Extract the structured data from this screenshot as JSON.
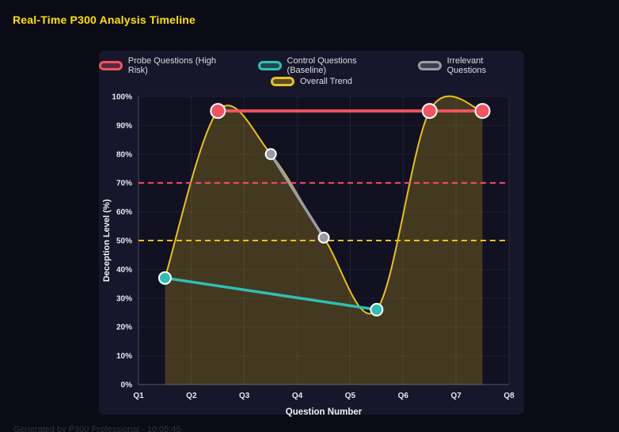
{
  "page": {
    "title": "Real-Time P300 Analysis Timeline",
    "footer": "Generated by P300 Professional - 10:05:45"
  },
  "colors": {
    "title": "#ffe100",
    "page_bg": "#0b0b16",
    "panel_bg": "#17172b"
  },
  "chart_data": {
    "type": "line",
    "title": "Real-Time P300 Analysis Timeline",
    "xlabel": "Question Number",
    "ylabel": "Deception Level (%)",
    "x_range": [
      1,
      8
    ],
    "ylim": [
      0,
      100
    ],
    "x_ticks": [
      "Q1",
      "Q2",
      "Q3",
      "Q4",
      "Q5",
      "Q6",
      "Q7",
      "Q8"
    ],
    "y_ticks": [
      "0%",
      "10%",
      "20%",
      "30%",
      "40%",
      "50%",
      "60%",
      "70%",
      "80%",
      "90%",
      "100%"
    ],
    "grid": true,
    "legend_position": "top",
    "series": [
      {
        "name": "Probe Questions (High Risk)",
        "color": "#f0545f",
        "points": [
          [
            2.5,
            95
          ],
          [
            6.5,
            95
          ],
          [
            7.5,
            95
          ]
        ],
        "line_width": 4,
        "point_radius": 9,
        "smooth": false,
        "fill": false
      },
      {
        "name": "Control Questions (Baseline)",
        "color": "#2fbfb3",
        "points": [
          [
            1.5,
            37
          ],
          [
            5.5,
            26
          ]
        ],
        "line_width": 3.5,
        "point_radius": 7.5,
        "smooth": false,
        "fill": false
      },
      {
        "name": "Irrelevant Questions",
        "color": "#9b9ba3",
        "points": [
          [
            3.5,
            80
          ],
          [
            4.5,
            51
          ]
        ],
        "line_width": 3.5,
        "point_radius": 6.5,
        "smooth": false,
        "fill": false
      },
      {
        "name": "Overall Trend",
        "color": "#e8c11c",
        "points": [
          [
            1.5,
            37
          ],
          [
            2.5,
            95
          ],
          [
            3.5,
            80
          ],
          [
            4.5,
            51
          ],
          [
            5.5,
            26
          ],
          [
            6.5,
            95
          ],
          [
            7.5,
            95
          ]
        ],
        "line_width": 2,
        "point_radius": 0,
        "smooth": true,
        "fill": true
      }
    ],
    "thresholds": [
      {
        "label": "high-risk-threshold-line",
        "value": 70,
        "color": "#ff4d6d"
      },
      {
        "label": "baseline-threshold-line",
        "value": 50,
        "color": "#e8c11c"
      }
    ]
  }
}
